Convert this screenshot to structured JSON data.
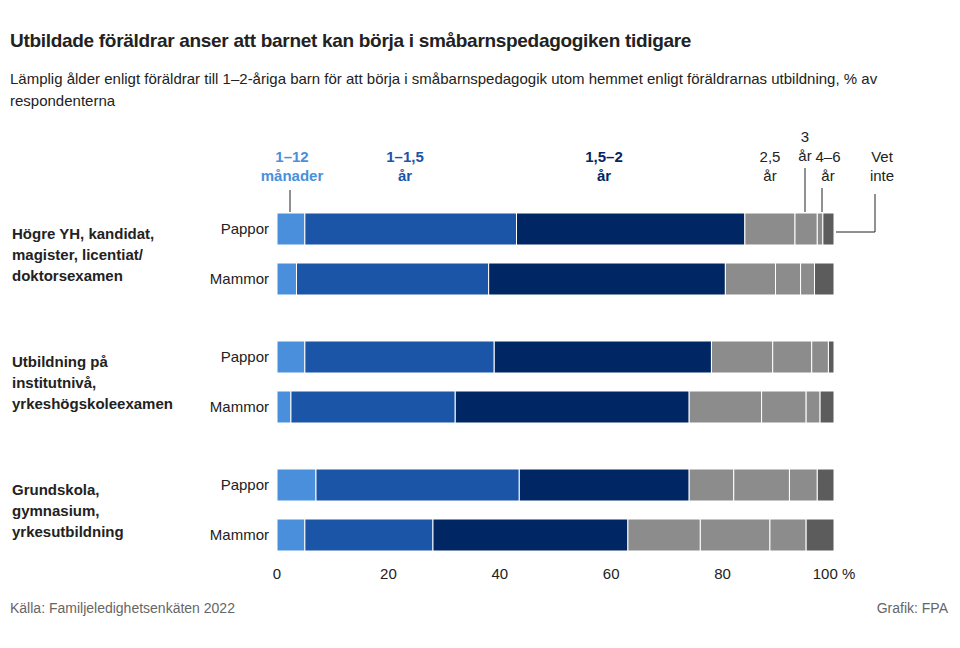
{
  "chart_data": {
    "type": "bar",
    "orientation": "horizontal",
    "stacked": true,
    "title": "Utbildade föräldrar anser att barnet kan börja i småbarnspedagogiken tidigare",
    "subtitle": "Lämplig ålder enligt föräldrar till 1–2-åriga barn för att börja i småbarnspedagogik utom hemmet enligt föräldrarnas utbildning, % av respondenterna",
    "source": "Källa: Familjeledighetsenkäten 2022",
    "credit": "Grafik: FPA",
    "group_labels": [
      [
        "Högre YH, kandidat,",
        "magister, licentiat/",
        "doktorsexamen"
      ],
      [
        "Utbildning på",
        "institutnivå,",
        "yrkeshögskoleexamen"
      ],
      [
        "Grundskola,",
        "gymnasium,",
        "yrkesutbildning"
      ]
    ],
    "categories": [
      "Pappor",
      "Mammor",
      "Pappor",
      "Mammor",
      "Pappor",
      "Mammor"
    ],
    "series": [
      {
        "name": "1–12 månader",
        "color": "#4a8fdb",
        "values": [
          5,
          3.5,
          5,
          2.5,
          7,
          5
        ]
      },
      {
        "name": "1–1,5 år",
        "color": "#1a55a8",
        "values": [
          38,
          34.5,
          34,
          29.5,
          36.5,
          23
        ]
      },
      {
        "name": "1,5–2 år",
        "color": "#002663",
        "values": [
          41,
          42.5,
          39,
          42,
          30.5,
          35
        ]
      },
      {
        "name": "2,5 år",
        "color": "#8c8c8c",
        "values": [
          9,
          9,
          11,
          13,
          8,
          13
        ]
      },
      {
        "name": "3 år",
        "color": "#8c8c8c",
        "values": [
          4,
          4.5,
          7,
          8,
          10,
          12.5
        ]
      },
      {
        "name": "4–6 år",
        "color": "#8c8c8c",
        "values": [
          1,
          2.5,
          3,
          2.5,
          5,
          6.5
        ]
      },
      {
        "name": "Vet inte",
        "color": "#5c5c5c",
        "values": [
          2,
          3.5,
          1,
          2.5,
          3,
          5
        ]
      }
    ],
    "xlim": [
      0,
      100
    ],
    "xticks": [
      0,
      20,
      40,
      60,
      80,
      {
        "value": 100,
        "label": "100 %"
      }
    ]
  }
}
